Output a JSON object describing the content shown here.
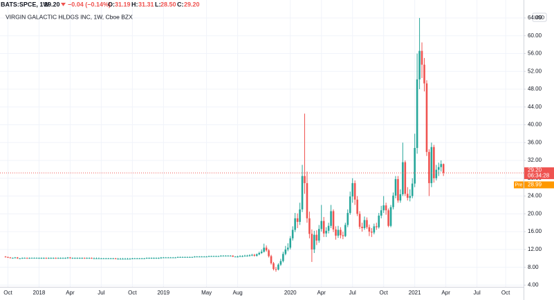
{
  "header": {
    "symbol": "BATS:SPCE, 1W",
    "last": "29.20",
    "change": "−0.04 (−0.14%)",
    "ohlc": [
      {
        "key": "O:",
        "value": "31.19"
      },
      {
        "key": "H:",
        "value": "31.31"
      },
      {
        "key": "L:",
        "value": "28.50"
      },
      {
        "key": "C:",
        "value": "29.20"
      }
    ]
  },
  "chart_data": {
    "type": "candlestick",
    "title": "VIRGIN GALACTIC HLDGS INC, 1W, Cboe BZX",
    "currency": "USD",
    "up_color": "#26a69a",
    "down_color": "#ef5350",
    "grid": true,
    "ylim": [
      3.6,
      65.7
    ],
    "yticks": [
      {
        "value": 4,
        "label": "4.00"
      },
      {
        "value": 8,
        "label": "8.00"
      },
      {
        "value": 12,
        "label": "12.00"
      },
      {
        "value": 16,
        "label": "16.00"
      },
      {
        "value": 20,
        "label": "20.00"
      },
      {
        "value": 24,
        "label": "24.00"
      },
      {
        "value": 28,
        "label": "28.00"
      },
      {
        "value": 32,
        "label": "32.00"
      },
      {
        "value": 36,
        "label": "36.00"
      },
      {
        "value": 40,
        "label": "40.00"
      },
      {
        "value": 44,
        "label": "44.00"
      },
      {
        "value": 48,
        "label": "48.00"
      },
      {
        "value": 52,
        "label": "52.00"
      },
      {
        "value": 56,
        "label": "56.00"
      },
      {
        "value": 60,
        "label": "60.00"
      },
      {
        "value": 64,
        "label": "64.00"
      }
    ],
    "last_price": {
      "value": 29.2,
      "label": "29.20",
      "countdown": "06:34:28"
    },
    "premarket": {
      "name": "Pre",
      "value": 28.99,
      "label": "28.99"
    },
    "categories": [
      null,
      "Oct",
      null,
      null,
      null,
      null,
      null,
      null,
      null,
      null,
      null,
      null,
      null,
      null,
      "2018",
      null,
      null,
      null,
      null,
      null,
      null,
      null,
      null,
      null,
      null,
      null,
      null,
      "Apr",
      null,
      null,
      null,
      null,
      null,
      null,
      null,
      null,
      null,
      null,
      null,
      null,
      "Jul",
      null,
      null,
      null,
      null,
      null,
      null,
      null,
      null,
      null,
      null,
      null,
      null,
      "Oct",
      null,
      null,
      null,
      null,
      null,
      null,
      null,
      null,
      null,
      null,
      null,
      null,
      "2019",
      null,
      null,
      null,
      null,
      null,
      null,
      null,
      null,
      null,
      null,
      null,
      null,
      null,
      null,
      null,
      null,
      null,
      "May",
      null,
      null,
      null,
      null,
      null,
      null,
      null,
      null,
      null,
      null,
      null,
      null,
      "Aug",
      null,
      null,
      null,
      null,
      null,
      null,
      null,
      null,
      null,
      null,
      null,
      null,
      null,
      null,
      null,
      null,
      null,
      null,
      null,
      null,
      null,
      "2020",
      null,
      null,
      null,
      null,
      null,
      null,
      null,
      null,
      null,
      null,
      null,
      null,
      "Apr",
      null,
      null,
      null,
      null,
      null,
      null,
      null,
      null,
      null,
      null,
      null,
      null,
      "Jul",
      null,
      null,
      null,
      null,
      null,
      null,
      null,
      null,
      null,
      null,
      null,
      null,
      "Oct",
      null,
      null,
      null,
      null,
      null,
      null,
      null,
      null,
      null,
      null,
      null,
      null,
      "2021",
      null,
      null,
      null,
      null,
      null,
      null,
      null,
      null,
      null,
      null,
      null,
      null,
      "Apr",
      null,
      null,
      null,
      null,
      null,
      null,
      null,
      null,
      null,
      null,
      null,
      null,
      "Jul",
      null,
      null,
      null,
      null,
      null,
      null,
      null,
      null,
      null,
      null,
      null,
      "Oct"
    ],
    "open": [
      10.4,
      10.3,
      10.2,
      10.1,
      10.1,
      10.2,
      10.0,
      10.0,
      10.1,
      10.1,
      10.0,
      10.1,
      10.1,
      10.1,
      10.1,
      10.1,
      10.1,
      10.1,
      10.0,
      10.1,
      10.1,
      10.1,
      10.0,
      10.1,
      10.1,
      10.1,
      10.1,
      10.2,
      10.1,
      10.1,
      10.1,
      10.1,
      10.1,
      10.1,
      10.0,
      10.1,
      10.1,
      10.0,
      10.0,
      10.0,
      10.0,
      10.0,
      10.0,
      10.0,
      10.0,
      10.0,
      10.0,
      9.9,
      9.9,
      9.9,
      9.9,
      9.9,
      9.9,
      9.9,
      10.0,
      10.0,
      10.0,
      10.0,
      10.0,
      10.0,
      10.1,
      10.1,
      10.1,
      10.1,
      10.1,
      10.1,
      10.2,
      10.2,
      10.2,
      10.2,
      10.2,
      10.2,
      10.2,
      10.3,
      10.3,
      10.3,
      10.3,
      10.3,
      10.3,
      10.3,
      10.4,
      10.4,
      10.4,
      10.4,
      10.4,
      10.4,
      10.5,
      10.5,
      10.5,
      10.5,
      10.5,
      10.6,
      10.6,
      10.6,
      10.6,
      10.6,
      10.4,
      10.4,
      10.4,
      10.5,
      10.5,
      10.6,
      10.6,
      10.7,
      10.8,
      10.6,
      10.9,
      11.2,
      11.5,
      12.4,
      11.8,
      10.5,
      8.9,
      7.6,
      7.5,
      8.6,
      9.4,
      11.0,
      12.0,
      12.4,
      14.5,
      16.4,
      19.0,
      18.2,
      21.0,
      28.5,
      26.9,
      19.0,
      15.5,
      12.0,
      15.3,
      14.0,
      16.6,
      18.4,
      15.6,
      16.2,
      17.3,
      20.6,
      16.5,
      15.1,
      16.4,
      15.2,
      15.0,
      17.5,
      20.2,
      23.9,
      26.9,
      23.2,
      20.0,
      17.1,
      16.8,
      18.6,
      17.0,
      16.0,
      15.8,
      17.2,
      17.0,
      19.6,
      20.8,
      21.9,
      20.8,
      17.3,
      21.5,
      24.1,
      27.8,
      23.0,
      24.4,
      31.6,
      24.5,
      23.6,
      24.0,
      26.8,
      34.8,
      50.2,
      56.6,
      53.5,
      49.3,
      33.9,
      26.9,
      35.0,
      28.0,
      29.9,
      30.5,
      31.19,
      null,
      null,
      null,
      null,
      null,
      null,
      null,
      null,
      null,
      null,
      null,
      null,
      null,
      null,
      null,
      null,
      null,
      null,
      null,
      null,
      null,
      null,
      null,
      null,
      null,
      null
    ],
    "high": [
      10.5,
      10.4,
      10.3,
      10.2,
      10.3,
      10.3,
      10.1,
      10.2,
      10.2,
      10.2,
      10.2,
      10.2,
      10.2,
      10.2,
      10.2,
      10.2,
      10.2,
      10.2,
      10.2,
      10.2,
      10.2,
      10.2,
      10.2,
      10.2,
      10.2,
      10.2,
      10.3,
      10.3,
      10.2,
      10.2,
      10.2,
      10.2,
      10.2,
      10.2,
      10.2,
      10.2,
      10.2,
      10.2,
      10.2,
      10.2,
      10.1,
      10.1,
      10.1,
      10.1,
      10.1,
      10.1,
      10.1,
      10.1,
      10.1,
      10.1,
      10.1,
      10.1,
      10.1,
      10.1,
      10.1,
      10.1,
      10.1,
      10.1,
      10.1,
      10.2,
      10.2,
      10.2,
      10.2,
      10.2,
      10.2,
      10.3,
      10.3,
      10.3,
      10.3,
      10.3,
      10.3,
      10.3,
      10.4,
      10.4,
      10.4,
      10.4,
      10.4,
      10.4,
      10.4,
      10.5,
      10.5,
      10.5,
      10.5,
      10.5,
      10.5,
      10.6,
      10.6,
      10.6,
      10.6,
      10.6,
      10.7,
      10.7,
      10.7,
      10.7,
      10.7,
      10.7,
      10.5,
      10.6,
      10.7,
      10.7,
      10.8,
      10.8,
      10.9,
      11.0,
      11.0,
      11.1,
      11.5,
      12.0,
      13.3,
      12.9,
      12.1,
      10.8,
      9.2,
      8.1,
      8.9,
      9.9,
      11.5,
      12.8,
      13.4,
      15.0,
      17.2,
      20.2,
      20.1,
      22.5,
      31.0,
      42.5,
      29.5,
      20.5,
      16.5,
      16.2,
      16.3,
      17.5,
      22.0,
      19.3,
      17.0,
      18.0,
      22.0,
      21.0,
      17.2,
      17.3,
      17.0,
      16.0,
      18.0,
      21.0,
      25.0,
      28.0,
      27.5,
      24.0,
      20.6,
      18.0,
      19.4,
      19.2,
      17.6,
      16.8,
      17.8,
      18.0,
      20.2,
      21.8,
      24.0,
      22.5,
      21.2,
      22.0,
      24.8,
      28.5,
      28.5,
      25.5,
      36.0,
      32.0,
      26.0,
      25.5,
      28.0,
      38.0,
      56.0,
      64.0,
      58.5,
      55.0,
      50.0,
      34.5,
      36.0,
      35.5,
      31.0,
      31.5,
      32.0,
      31.31,
      null,
      null,
      null,
      null,
      null,
      null,
      null,
      null,
      null,
      null,
      null,
      null,
      null,
      null,
      null,
      null,
      null,
      null,
      null,
      null,
      null,
      null,
      null,
      null,
      null,
      null
    ],
    "low": [
      10.2,
      10.1,
      10.0,
      10.0,
      10.0,
      9.9,
      9.9,
      9.9,
      10.0,
      9.9,
      9.9,
      10.0,
      10.0,
      10.0,
      9.9,
      9.9,
      9.9,
      9.9,
      9.9,
      9.9,
      9.9,
      9.9,
      9.9,
      9.9,
      9.9,
      9.9,
      9.9,
      9.9,
      9.9,
      9.9,
      9.9,
      9.9,
      9.9,
      9.9,
      9.9,
      9.9,
      9.9,
      9.9,
      9.9,
      9.9,
      9.9,
      9.9,
      9.9,
      9.9,
      9.9,
      9.9,
      9.8,
      9.8,
      9.8,
      9.8,
      9.8,
      9.8,
      9.8,
      9.8,
      9.9,
      9.9,
      9.9,
      9.9,
      9.9,
      9.9,
      9.9,
      9.9,
      9.9,
      9.9,
      9.9,
      9.9,
      10.1,
      10.1,
      10.1,
      10.1,
      10.1,
      10.1,
      10.1,
      10.2,
      10.2,
      10.2,
      10.2,
      10.2,
      10.2,
      10.2,
      10.3,
      10.3,
      10.3,
      10.3,
      10.3,
      10.3,
      10.4,
      10.4,
      10.4,
      10.4,
      10.4,
      10.5,
      10.5,
      10.5,
      10.5,
      10.3,
      10.3,
      10.2,
      10.3,
      10.3,
      10.4,
      10.4,
      10.4,
      10.5,
      10.4,
      10.4,
      10.7,
      11.0,
      11.3,
      11.5,
      10.2,
      8.6,
      7.3,
      7.0,
      7.3,
      8.3,
      9.1,
      10.7,
      11.6,
      12.0,
      14.0,
      15.9,
      16.8,
      17.5,
      20.4,
      24.5,
      18.0,
      14.5,
      9.2,
      11.2,
      13.0,
      13.5,
      16.0,
      14.8,
      14.8,
      15.6,
      16.8,
      15.9,
      14.2,
      14.6,
      14.5,
      14.3,
      14.8,
      17.0,
      19.8,
      22.5,
      22.0,
      19.5,
      16.6,
      16.0,
      16.4,
      16.6,
      15.0,
      14.8,
      15.4,
      16.4,
      16.7,
      19.0,
      20.2,
      19.8,
      17.0,
      17.0,
      21.0,
      23.5,
      22.5,
      22.5,
      24.0,
      24.0,
      23.0,
      22.8,
      23.5,
      26.0,
      33.5,
      48.0,
      50.5,
      47.5,
      33.0,
      24.0,
      26.0,
      27.0,
      27.5,
      28.5,
      29.5,
      28.5,
      null,
      null,
      null,
      null,
      null,
      null,
      null,
      null,
      null,
      null,
      null,
      null,
      null,
      null,
      null,
      null,
      null,
      null,
      null,
      null,
      null,
      null,
      null,
      null,
      null,
      null
    ],
    "close": [
      10.3,
      10.2,
      10.1,
      10.1,
      10.2,
      10.0,
      10.0,
      10.1,
      10.1,
      10.0,
      10.1,
      10.1,
      10.1,
      10.1,
      10.1,
      10.1,
      10.1,
      10.0,
      10.1,
      10.1,
      10.1,
      10.0,
      10.1,
      10.1,
      10.1,
      10.1,
      10.2,
      10.1,
      10.1,
      10.1,
      10.1,
      10.1,
      10.1,
      10.0,
      10.1,
      10.1,
      10.0,
      10.0,
      10.0,
      10.0,
      10.0,
      10.0,
      10.0,
      10.0,
      10.0,
      10.0,
      9.9,
      9.9,
      9.9,
      9.9,
      9.9,
      9.9,
      9.9,
      10.0,
      10.0,
      10.0,
      10.0,
      10.0,
      10.0,
      10.1,
      10.1,
      10.1,
      10.1,
      10.1,
      10.1,
      10.2,
      10.2,
      10.2,
      10.2,
      10.2,
      10.2,
      10.2,
      10.3,
      10.3,
      10.3,
      10.3,
      10.3,
      10.3,
      10.3,
      10.4,
      10.4,
      10.4,
      10.4,
      10.4,
      10.4,
      10.5,
      10.5,
      10.5,
      10.5,
      10.5,
      10.6,
      10.6,
      10.6,
      10.6,
      10.6,
      10.4,
      10.4,
      10.4,
      10.5,
      10.5,
      10.6,
      10.6,
      10.7,
      10.8,
      10.6,
      10.9,
      11.2,
      11.5,
      12.4,
      11.8,
      10.5,
      8.9,
      7.6,
      7.5,
      8.6,
      9.4,
      11.0,
      12.0,
      12.4,
      14.5,
      16.4,
      19.0,
      18.2,
      21.0,
      28.5,
      26.9,
      19.0,
      15.5,
      12.0,
      15.3,
      14.0,
      16.6,
      18.4,
      15.6,
      16.2,
      17.3,
      20.6,
      16.5,
      15.1,
      16.4,
      15.2,
      15.0,
      17.5,
      20.2,
      23.9,
      26.9,
      23.2,
      20.0,
      17.1,
      16.8,
      18.6,
      17.0,
      16.0,
      15.8,
      17.2,
      17.0,
      19.6,
      20.8,
      21.9,
      20.8,
      17.3,
      21.5,
      24.1,
      27.8,
      23.0,
      24.4,
      31.6,
      24.5,
      23.6,
      24.0,
      26.8,
      34.8,
      50.2,
      56.6,
      53.5,
      49.3,
      33.9,
      26.9,
      35.0,
      28.0,
      29.9,
      30.5,
      31.2,
      29.2,
      null,
      null,
      null,
      null,
      null,
      null,
      null,
      null,
      null,
      null,
      null,
      null,
      null,
      null,
      null,
      null,
      null,
      null,
      null,
      null,
      null,
      null,
      null,
      null,
      null,
      null
    ]
  }
}
